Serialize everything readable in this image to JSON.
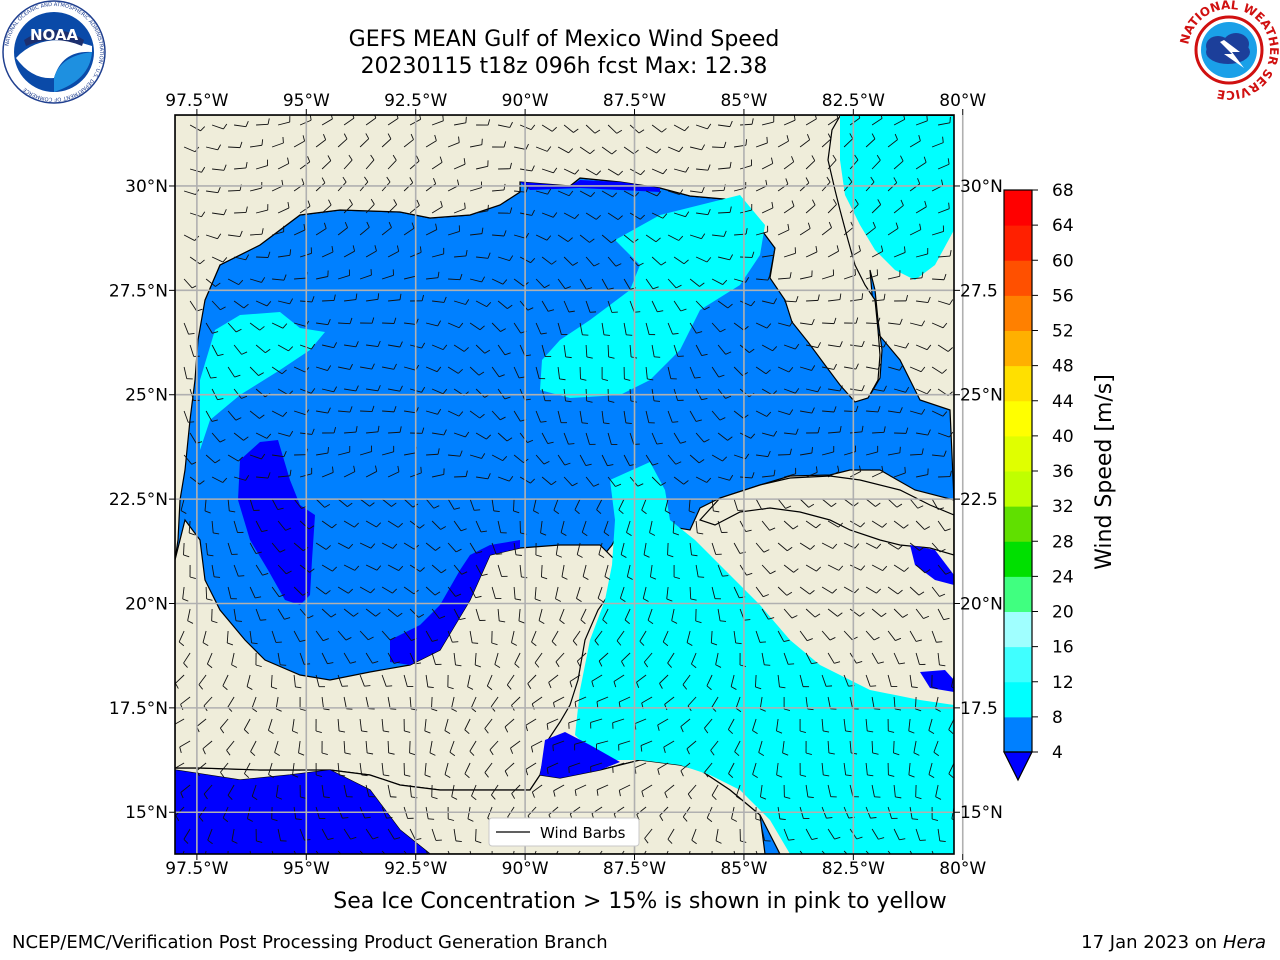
{
  "title": {
    "line1": "GEFS MEAN Gulf of Mexico Wind Speed",
    "line2": "20230115 t18z 096h fcst   Max: 12.38"
  },
  "logos": {
    "noaa": "NOAA",
    "noaa_ring_text": "NATIONAL OCEANIC AND ATMOSPHERIC ADMINISTRATION · U.S. DEPARTMENT OF COMMERCE",
    "nws_ring_text": "NATIONAL WEATHER SERVICE"
  },
  "map": {
    "region": "Gulf of Mexico",
    "lon_range": [
      -98,
      -80.2
    ],
    "lat_range": [
      14.0,
      31.7
    ],
    "grid": true,
    "land_color": "#efedda",
    "lon_ticks": [
      "97.5°W",
      "95°W",
      "92.5°W",
      "90°W",
      "87.5°W",
      "85°W",
      "82.5°W",
      "80°W"
    ],
    "lat_ticks": [
      "30°N",
      "27.5°N",
      "25°N",
      "22.5°N",
      "20°N",
      "17.5°N",
      "15°N"
    ],
    "lat_ticks_right": [
      "30°N",
      "27.5",
      "25°N",
      "22.5",
      "20°N",
      "17.5",
      "15°N"
    ],
    "legend_label": "Wind Barbs"
  },
  "colorbar": {
    "label": "Wind Speed [m/s]",
    "ticks": [
      "4",
      "8",
      "12",
      "16",
      "20",
      "24",
      "28",
      "32",
      "36",
      "40",
      "44",
      "48",
      "52",
      "56",
      "60",
      "64",
      "68"
    ],
    "colors": [
      "#0000ff",
      "#0080ff",
      "#00ffff",
      "#40ffff",
      "#a0ffff",
      "#40ff80",
      "#00e000",
      "#60e000",
      "#c0ff00",
      "#e0ff00",
      "#ffff00",
      "#ffe000",
      "#ffb000",
      "#ff8000",
      "#ff5000",
      "#ff2000",
      "#ff0000"
    ],
    "extend_color": "#0000ff"
  },
  "subtitle": "Sea Ice Concentration > 15% is shown in pink to yellow",
  "footer": {
    "left": "NCEP/EMC/Verification Post Processing Product Generation Branch",
    "date": "17 Jan 2023 on ",
    "host": "Hera"
  }
}
